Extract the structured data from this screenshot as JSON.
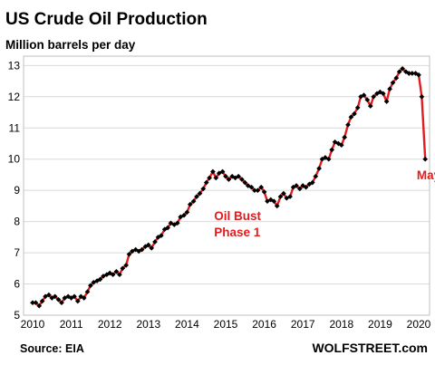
{
  "chart_data": {
    "type": "line",
    "title": "US Crude Oil Production",
    "subtitle": "Million barrels per day",
    "source": "Source: EIA",
    "brand": "WOLFSTREET.com",
    "xlim": [
      2010,
      2020.5
    ],
    "ylim": [
      5,
      13.3
    ],
    "x_ticks": [
      2010,
      2011,
      2012,
      2013,
      2014,
      2015,
      2016,
      2017,
      2018,
      2019,
      2020
    ],
    "y_ticks": [
      5,
      6,
      7,
      8,
      9,
      10,
      11,
      12,
      13
    ],
    "grid": "horizontal",
    "line_color": "#e41a1c",
    "marker_color": "#000000",
    "annotations": [
      {
        "name": "oil-bust-label",
        "lines": [
          "Oil Bust",
          "Phase 1"
        ],
        "x": 2014.7,
        "y": 8.05
      },
      {
        "name": "may-label",
        "lines": [
          "May"
        ],
        "x": 2019.95,
        "y": 9.35
      }
    ],
    "series": [
      {
        "points": [
          [
            2010.0,
            5.4
          ],
          [
            2010.08,
            5.4
          ],
          [
            2010.17,
            5.3
          ],
          [
            2010.25,
            5.45
          ],
          [
            2010.33,
            5.6
          ],
          [
            2010.42,
            5.65
          ],
          [
            2010.5,
            5.55
          ],
          [
            2010.58,
            5.6
          ],
          [
            2010.67,
            5.5
          ],
          [
            2010.75,
            5.4
          ],
          [
            2010.83,
            5.55
          ],
          [
            2010.92,
            5.6
          ],
          [
            2011.0,
            5.55
          ],
          [
            2011.08,
            5.6
          ],
          [
            2011.17,
            5.45
          ],
          [
            2011.25,
            5.6
          ],
          [
            2011.33,
            5.55
          ],
          [
            2011.42,
            5.75
          ],
          [
            2011.5,
            5.95
          ],
          [
            2011.58,
            6.05
          ],
          [
            2011.67,
            6.1
          ],
          [
            2011.75,
            6.15
          ],
          [
            2011.83,
            6.25
          ],
          [
            2011.92,
            6.3
          ],
          [
            2012.0,
            6.35
          ],
          [
            2012.08,
            6.3
          ],
          [
            2012.17,
            6.4
          ],
          [
            2012.25,
            6.3
          ],
          [
            2012.33,
            6.5
          ],
          [
            2012.42,
            6.6
          ],
          [
            2012.5,
            6.95
          ],
          [
            2012.58,
            7.05
          ],
          [
            2012.67,
            7.1
          ],
          [
            2012.75,
            7.05
          ],
          [
            2012.83,
            7.1
          ],
          [
            2012.92,
            7.2
          ],
          [
            2013.0,
            7.25
          ],
          [
            2013.08,
            7.15
          ],
          [
            2013.17,
            7.35
          ],
          [
            2013.25,
            7.5
          ],
          [
            2013.33,
            7.55
          ],
          [
            2013.42,
            7.75
          ],
          [
            2013.5,
            7.8
          ],
          [
            2013.58,
            7.95
          ],
          [
            2013.67,
            7.9
          ],
          [
            2013.75,
            7.95
          ],
          [
            2013.83,
            8.15
          ],
          [
            2013.92,
            8.2
          ],
          [
            2014.0,
            8.3
          ],
          [
            2014.08,
            8.55
          ],
          [
            2014.17,
            8.65
          ],
          [
            2014.25,
            8.8
          ],
          [
            2014.33,
            8.9
          ],
          [
            2014.42,
            9.05
          ],
          [
            2014.5,
            9.25
          ],
          [
            2014.58,
            9.4
          ],
          [
            2014.67,
            9.6
          ],
          [
            2014.75,
            9.4
          ],
          [
            2014.83,
            9.55
          ],
          [
            2014.92,
            9.6
          ],
          [
            2015.0,
            9.45
          ],
          [
            2015.08,
            9.35
          ],
          [
            2015.17,
            9.45
          ],
          [
            2015.25,
            9.4
          ],
          [
            2015.33,
            9.45
          ],
          [
            2015.42,
            9.35
          ],
          [
            2015.5,
            9.25
          ],
          [
            2015.58,
            9.15
          ],
          [
            2015.67,
            9.1
          ],
          [
            2015.75,
            9.0
          ],
          [
            2015.83,
            9.0
          ],
          [
            2015.92,
            9.1
          ],
          [
            2016.0,
            8.95
          ],
          [
            2016.08,
            8.65
          ],
          [
            2016.17,
            8.7
          ],
          [
            2016.25,
            8.65
          ],
          [
            2016.33,
            8.5
          ],
          [
            2016.42,
            8.8
          ],
          [
            2016.5,
            8.9
          ],
          [
            2016.58,
            8.75
          ],
          [
            2016.67,
            8.8
          ],
          [
            2016.75,
            9.1
          ],
          [
            2016.83,
            9.15
          ],
          [
            2016.92,
            9.05
          ],
          [
            2017.0,
            9.15
          ],
          [
            2017.08,
            9.1
          ],
          [
            2017.17,
            9.2
          ],
          [
            2017.25,
            9.25
          ],
          [
            2017.33,
            9.45
          ],
          [
            2017.42,
            9.7
          ],
          [
            2017.5,
            10.0
          ],
          [
            2017.58,
            10.05
          ],
          [
            2017.67,
            10.0
          ],
          [
            2017.75,
            10.3
          ],
          [
            2017.83,
            10.55
          ],
          [
            2017.92,
            10.5
          ],
          [
            2018.0,
            10.45
          ],
          [
            2018.08,
            10.7
          ],
          [
            2018.17,
            11.1
          ],
          [
            2018.25,
            11.35
          ],
          [
            2018.33,
            11.45
          ],
          [
            2018.42,
            11.65
          ],
          [
            2018.5,
            12.0
          ],
          [
            2018.58,
            12.05
          ],
          [
            2018.67,
            11.9
          ],
          [
            2018.75,
            11.7
          ],
          [
            2018.83,
            12.0
          ],
          [
            2018.92,
            12.1
          ],
          [
            2019.0,
            12.15
          ],
          [
            2019.08,
            12.1
          ],
          [
            2019.17,
            11.85
          ],
          [
            2019.25,
            12.25
          ],
          [
            2019.33,
            12.45
          ],
          [
            2019.42,
            12.6
          ],
          [
            2019.5,
            12.8
          ],
          [
            2019.58,
            12.9
          ],
          [
            2019.67,
            12.8
          ],
          [
            2019.75,
            12.75
          ],
          [
            2019.83,
            12.75
          ],
          [
            2019.92,
            12.75
          ],
          [
            2020.0,
            12.7
          ],
          [
            2020.08,
            12.0
          ],
          [
            2020.17,
            10.0
          ]
        ]
      }
    ]
  }
}
